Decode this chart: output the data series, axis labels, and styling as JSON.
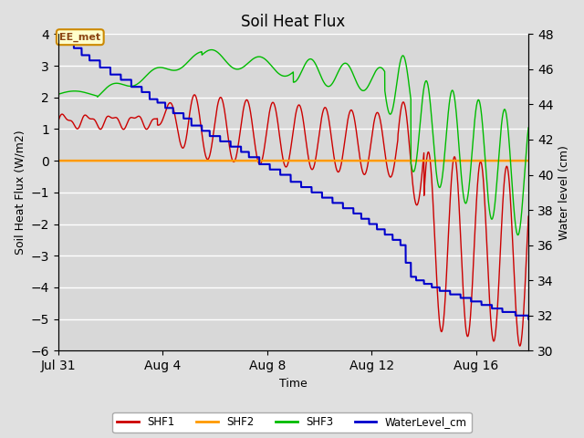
{
  "title": "Soil Heat Flux",
  "xlabel": "Time",
  "ylabel_left": "Soil Heat Flux (W/m2)",
  "ylabel_right": "Water level (cm)",
  "ylim_left": [
    -6.0,
    4.0
  ],
  "ylim_right": [
    30,
    48
  ],
  "yticks_left": [
    -6.0,
    -5.0,
    -4.0,
    -3.0,
    -2.0,
    -1.0,
    0.0,
    1.0,
    2.0,
    3.0,
    4.0
  ],
  "yticks_right": [
    30,
    32,
    34,
    36,
    38,
    40,
    42,
    44,
    46,
    48
  ],
  "bg_color": "#e0e0e0",
  "plot_bg_color": "#d8d8d8",
  "grid_color": "#ffffff",
  "annotation_text": "EE_met",
  "legend_entries": [
    "SHF1",
    "SHF2",
    "SHF3",
    "WaterLevel_cm"
  ],
  "colors": {
    "SHF1": "#cc0000",
    "SHF2": "#ff9900",
    "SHF3": "#00bb00",
    "WaterLevel_cm": "#0000cc"
  },
  "xtick_positions": [
    0,
    4,
    8,
    12,
    16
  ],
  "xtick_labels": [
    "Jul 31",
    "Aug 4",
    "Aug 8",
    "Aug 12",
    "Aug 16"
  ],
  "xlim": [
    0,
    18
  ]
}
